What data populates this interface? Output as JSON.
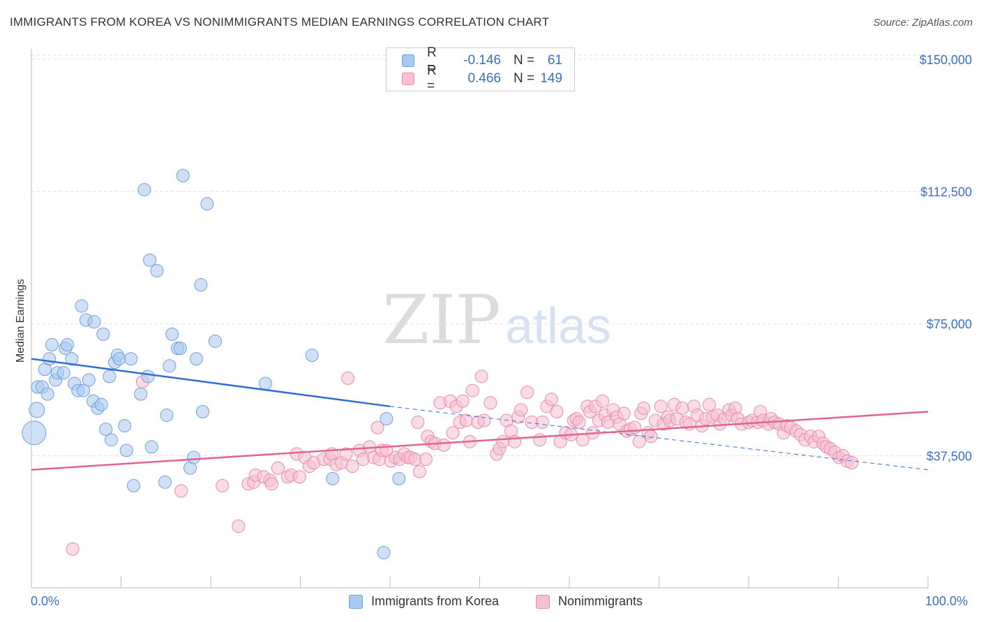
{
  "title": "IMMIGRANTS FROM KOREA VS NONIMMIGRANTS MEDIAN EARNINGS CORRELATION CHART",
  "source": "Source: ZipAtlas.com",
  "watermark": {
    "zip": "ZIP",
    "atlas": "atlas"
  },
  "legend_top": {
    "rows": [
      {
        "r_label": "R =",
        "r_value": "-0.146",
        "n_label": "N =",
        "n_value": "61",
        "color": "#a9c9f0",
        "border": "#6f9fdc"
      },
      {
        "r_label": "R =",
        "r_value": "0.466",
        "n_label": "N =",
        "n_value": "149",
        "color": "#f6bfd2",
        "border": "#e88aab"
      }
    ]
  },
  "legend_bottom": {
    "series": [
      {
        "name": "Immigrants from Korea",
        "color": "#a9c9f0",
        "border": "#6f9fdc"
      },
      {
        "name": "Nonimmigrants",
        "color": "#f6bfd2",
        "border": "#e88aab"
      }
    ]
  },
  "chart_data": {
    "type": "scatter",
    "title": "IMMIGRANTS FROM KOREA VS NONIMMIGRANTS MEDIAN EARNINGS CORRELATION CHART",
    "xlabel": "",
    "ylabel": "Median Earnings",
    "xlim": [
      0,
      100
    ],
    "ylim": [
      0,
      153000
    ],
    "x_tick_labels": [
      "0.0%",
      "100.0%"
    ],
    "y_ticks": [
      {
        "value": 37500,
        "label": "$37,500"
      },
      {
        "value": 75000,
        "label": "$75,000"
      },
      {
        "value": 112500,
        "label": "$112,500"
      },
      {
        "value": 150000,
        "label": "$150,000"
      }
    ],
    "grid": "horizontal dashed",
    "colors": {
      "korea": "#6f9fdc",
      "korea_fill": "#a9c9f0",
      "korea_line": "#2f6fcf",
      "non": "#e88aab",
      "non_fill": "#f6bfd2",
      "non_line": "#e0648f",
      "tick_text": "#3a6fc2"
    },
    "series": [
      {
        "name": "Immigrants from Korea",
        "trend": {
          "x": [
            0,
            40
          ],
          "y": [
            65000,
            51500
          ],
          "dashed_extension": {
            "x": [
              40,
              100
            ],
            "y": [
              51500,
              33500
            ]
          }
        },
        "points": [
          [
            0.3,
            44000
          ],
          [
            0.6,
            50500
          ],
          [
            0.7,
            57000
          ],
          [
            1.2,
            57000
          ],
          [
            1.5,
            62000
          ],
          [
            1.8,
            55000
          ],
          [
            2.0,
            65000
          ],
          [
            2.3,
            69000
          ],
          [
            2.7,
            59000
          ],
          [
            2.9,
            61000
          ],
          [
            3.6,
            61000
          ],
          [
            3.8,
            68000
          ],
          [
            4.0,
            69000
          ],
          [
            4.5,
            65000
          ],
          [
            4.8,
            58000
          ],
          [
            5.2,
            56000
          ],
          [
            5.6,
            80000
          ],
          [
            5.8,
            56000
          ],
          [
            6.1,
            76000
          ],
          [
            6.4,
            59000
          ],
          [
            6.9,
            53000
          ],
          [
            7.0,
            75500
          ],
          [
            7.4,
            51000
          ],
          [
            7.8,
            52000
          ],
          [
            8.0,
            72000
          ],
          [
            8.3,
            45000
          ],
          [
            8.7,
            60000
          ],
          [
            8.9,
            42000
          ],
          [
            9.3,
            64000
          ],
          [
            9.6,
            66000
          ],
          [
            9.8,
            65000
          ],
          [
            10.4,
            46000
          ],
          [
            10.6,
            39000
          ],
          [
            11.1,
            65000
          ],
          [
            11.4,
            29000
          ],
          [
            12.2,
            55000
          ],
          [
            12.6,
            113000
          ],
          [
            13.0,
            60000
          ],
          [
            13.2,
            93000
          ],
          [
            13.4,
            40000
          ],
          [
            14.0,
            90000
          ],
          [
            14.9,
            30000
          ],
          [
            15.1,
            49000
          ],
          [
            15.4,
            63000
          ],
          [
            15.7,
            72000
          ],
          [
            16.3,
            68000
          ],
          [
            16.6,
            68000
          ],
          [
            16.9,
            117000
          ],
          [
            17.7,
            34000
          ],
          [
            18.1,
            37000
          ],
          [
            18.4,
            65000
          ],
          [
            18.9,
            86000
          ],
          [
            19.1,
            50000
          ],
          [
            19.6,
            109000
          ],
          [
            20.5,
            70000
          ],
          [
            26.1,
            58000
          ],
          [
            31.3,
            66000
          ],
          [
            33.6,
            31000
          ],
          [
            39.3,
            10000
          ],
          [
            39.6,
            48000
          ],
          [
            41.0,
            31000
          ]
        ]
      },
      {
        "name": "Nonimmigrants",
        "trend": {
          "x": [
            0,
            100
          ],
          "y": [
            33500,
            50000
          ]
        },
        "points": [
          [
            4.6,
            11000
          ],
          [
            12.4,
            58500
          ],
          [
            16.7,
            27500
          ],
          [
            21.3,
            29000
          ],
          [
            23.1,
            17500
          ],
          [
            24.2,
            29500
          ],
          [
            24.8,
            30000
          ],
          [
            25.0,
            32000
          ],
          [
            25.9,
            31500
          ],
          [
            26.6,
            30500
          ],
          [
            26.8,
            29500
          ],
          [
            27.5,
            34000
          ],
          [
            28.6,
            31500
          ],
          [
            29.0,
            32000
          ],
          [
            29.6,
            38000
          ],
          [
            29.9,
            31500
          ],
          [
            30.5,
            37000
          ],
          [
            31.0,
            34500
          ],
          [
            31.5,
            35500
          ],
          [
            32.6,
            36500
          ],
          [
            33.3,
            36500
          ],
          [
            33.5,
            38000
          ],
          [
            34.0,
            35000
          ],
          [
            34.6,
            35500
          ],
          [
            35.1,
            38000
          ],
          [
            35.3,
            59500
          ],
          [
            35.8,
            34500
          ],
          [
            36.6,
            39000
          ],
          [
            37.0,
            36500
          ],
          [
            37.7,
            40000
          ],
          [
            38.2,
            37000
          ],
          [
            38.6,
            45500
          ],
          [
            38.8,
            36500
          ],
          [
            39.1,
            39000
          ],
          [
            39.6,
            39000
          ],
          [
            40.1,
            36000
          ],
          [
            40.6,
            37000
          ],
          [
            41.1,
            36500
          ],
          [
            41.6,
            38000
          ],
          [
            42.0,
            37000
          ],
          [
            42.3,
            37000
          ],
          [
            42.8,
            36500
          ],
          [
            43.1,
            47000
          ],
          [
            43.3,
            33000
          ],
          [
            44.0,
            36500
          ],
          [
            44.2,
            43000
          ],
          [
            44.6,
            41500
          ],
          [
            45.0,
            41000
          ],
          [
            45.6,
            52500
          ],
          [
            46.0,
            40500
          ],
          [
            46.7,
            53000
          ],
          [
            47.0,
            44000
          ],
          [
            47.4,
            51500
          ],
          [
            47.8,
            47000
          ],
          [
            48.1,
            53000
          ],
          [
            48.5,
            47500
          ],
          [
            48.9,
            41500
          ],
          [
            49.2,
            56000
          ],
          [
            49.8,
            47000
          ],
          [
            50.2,
            60000
          ],
          [
            50.5,
            47500
          ],
          [
            51.2,
            52500
          ],
          [
            51.9,
            38000
          ],
          [
            52.2,
            39500
          ],
          [
            52.6,
            41500
          ],
          [
            53.0,
            47500
          ],
          [
            53.5,
            44500
          ],
          [
            53.9,
            41500
          ],
          [
            54.3,
            48500
          ],
          [
            54.6,
            50500
          ],
          [
            55.3,
            55500
          ],
          [
            55.8,
            47000
          ],
          [
            56.7,
            42000
          ],
          [
            57.0,
            47000
          ],
          [
            57.5,
            51500
          ],
          [
            58.0,
            53500
          ],
          [
            58.6,
            50000
          ],
          [
            59.0,
            41500
          ],
          [
            59.6,
            44000
          ],
          [
            60.2,
            43500
          ],
          [
            60.5,
            47500
          ],
          [
            60.8,
            48000
          ],
          [
            61.1,
            47000
          ],
          [
            61.5,
            42000
          ],
          [
            62.0,
            51500
          ],
          [
            62.3,
            50000
          ],
          [
            62.6,
            44000
          ],
          [
            62.9,
            51500
          ],
          [
            63.3,
            47500
          ],
          [
            63.7,
            53000
          ],
          [
            64.0,
            49000
          ],
          [
            64.3,
            47000
          ],
          [
            64.9,
            50500
          ],
          [
            65.3,
            48500
          ],
          [
            65.6,
            46500
          ],
          [
            66.1,
            49500
          ],
          [
            66.4,
            44500
          ],
          [
            66.8,
            45000
          ],
          [
            67.3,
            45500
          ],
          [
            67.8,
            41500
          ],
          [
            68.0,
            49500
          ],
          [
            68.3,
            51000
          ],
          [
            68.8,
            44000
          ],
          [
            69.1,
            43000
          ],
          [
            69.6,
            47500
          ],
          [
            70.2,
            51500
          ],
          [
            70.5,
            46500
          ],
          [
            71.0,
            48500
          ],
          [
            71.2,
            47500
          ],
          [
            71.7,
            52000
          ],
          [
            72.0,
            48000
          ],
          [
            72.6,
            51000
          ],
          [
            73.0,
            47000
          ],
          [
            73.4,
            46500
          ],
          [
            73.9,
            51500
          ],
          [
            74.3,
            49000
          ],
          [
            74.8,
            46000
          ],
          [
            75.2,
            48000
          ],
          [
            75.6,
            52000
          ],
          [
            76.0,
            48500
          ],
          [
            76.5,
            49000
          ],
          [
            76.8,
            46500
          ],
          [
            77.3,
            48000
          ],
          [
            77.8,
            50500
          ],
          [
            78.1,
            49000
          ],
          [
            78.5,
            51000
          ],
          [
            78.8,
            48000
          ],
          [
            79.2,
            46500
          ],
          [
            80.0,
            47000
          ],
          [
            80.4,
            47500
          ],
          [
            81.0,
            47000
          ],
          [
            81.3,
            50000
          ],
          [
            81.6,
            47500
          ],
          [
            82.2,
            46500
          ],
          [
            82.5,
            48000
          ],
          [
            82.9,
            47000
          ],
          [
            83.4,
            46500
          ],
          [
            83.9,
            44000
          ],
          [
            84.3,
            46000
          ],
          [
            84.7,
            45500
          ],
          [
            85.3,
            44500
          ],
          [
            85.8,
            43500
          ],
          [
            86.3,
            42000
          ],
          [
            86.9,
            43000
          ],
          [
            87.3,
            41500
          ],
          [
            87.8,
            43000
          ],
          [
            88.3,
            41000
          ],
          [
            88.7,
            40000
          ],
          [
            89.1,
            39500
          ],
          [
            89.6,
            38500
          ],
          [
            90.1,
            37000
          ],
          [
            90.5,
            37500
          ],
          [
            91.0,
            36000
          ],
          [
            91.5,
            35500
          ]
        ]
      }
    ]
  }
}
